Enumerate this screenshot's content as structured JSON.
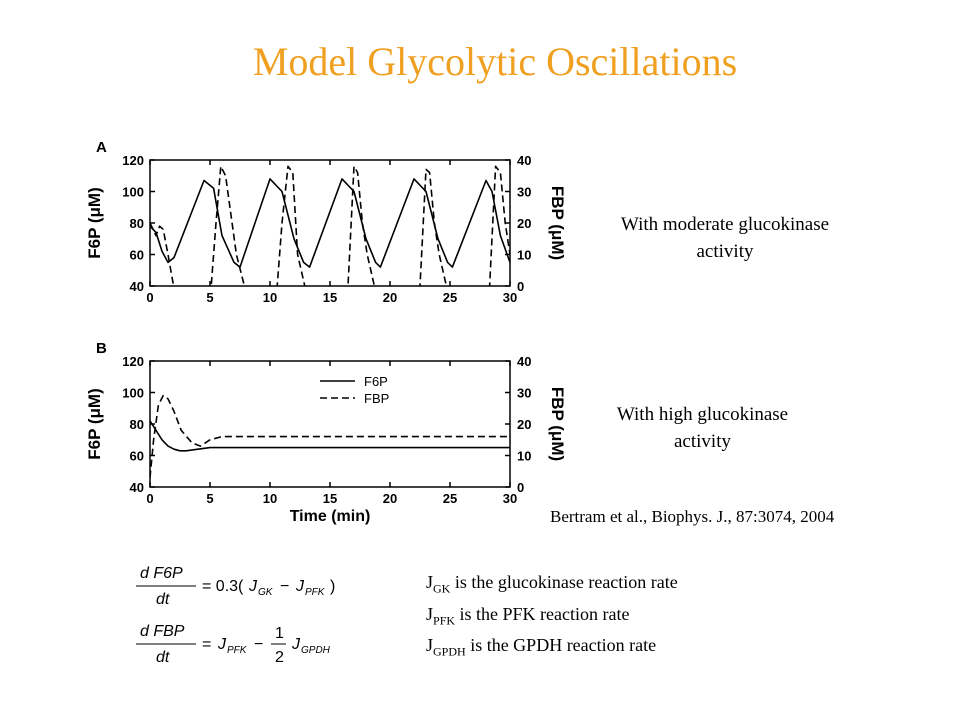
{
  "slide": {
    "title": "Model Glycolytic Oscillations",
    "caption_moderate_line1": "With moderate glucokinase",
    "caption_moderate_line2": "activity",
    "caption_high_line1": "With high glucokinase",
    "caption_high_line2": "activity",
    "citation": "Bertram et al., Biophys. J., 87:3074, 2004",
    "definitions": [
      {
        "sym": "J",
        "sub": "GK",
        "text": " is the glucokinase reaction rate"
      },
      {
        "sym": "J",
        "sub": "PFK",
        "text": " is the PFK reaction rate"
      },
      {
        "sym": "J",
        "sub": "GPDH",
        "text": " is the GPDH reaction rate"
      }
    ],
    "eq1": {
      "num": "d F6P",
      "den": "dt",
      "rhs": "= 0.3(",
      "j1": "J",
      "j1sub": "GK",
      "minus": "−",
      "j2": "J",
      "j2sub": "PFK",
      "close": ")"
    },
    "eq2": {
      "num": "d FBP",
      "den": "dt",
      "eq": "=",
      "j1": "J",
      "j1sub": "PFK",
      "minus": "−",
      "fnum": "1",
      "fden": "2",
      "j2": "J",
      "j2sub": "GPDH"
    }
  },
  "chart_data": [
    {
      "type": "line",
      "panel": "A",
      "xlim": [
        0,
        30
      ],
      "xticks": [
        0,
        5,
        10,
        15,
        20,
        25,
        30
      ],
      "ylabel": "F6P (μM)",
      "ylim": [
        40,
        120
      ],
      "yticks": [
        40,
        60,
        80,
        100,
        120
      ],
      "y2label": "FBP (μM)",
      "y2lim": [
        0,
        40
      ],
      "y2ticks": [
        0,
        10,
        20,
        30,
        40
      ],
      "xlabel": "",
      "series": [
        {
          "style": "solid",
          "axis": "left",
          "x": [
            0,
            0.5,
            1.0,
            1.5,
            2.0,
            4.5,
            5.3,
            6.0,
            7.0,
            7.5,
            10.0,
            11.0,
            12.0,
            12.8,
            13.3,
            16.0,
            17.0,
            18.0,
            18.8,
            19.2,
            22.0,
            23.0,
            24.0,
            24.8,
            25.2,
            28.0,
            28.5,
            29.2,
            30.0
          ],
          "y": [
            78,
            74,
            62,
            55,
            58,
            107,
            102,
            72,
            55,
            52,
            108,
            100,
            70,
            55,
            52,
            108,
            100,
            70,
            55,
            52,
            108,
            100,
            70,
            55,
            52,
            107,
            100,
            72,
            55
          ]
        },
        {
          "style": "dashed",
          "axis": "right",
          "x": [
            0,
            0.5,
            0.8,
            1.1,
            1.5,
            2.2,
            5.0,
            5.5,
            5.9,
            6.3,
            7.2,
            8.2,
            10.5,
            11.0,
            11.5,
            11.9,
            12.3,
            13.2,
            14.0,
            16.5,
            17.0,
            17.3,
            17.7,
            18.1,
            19.0,
            19.8,
            22.5,
            23.0,
            23.3,
            23.7,
            24.1,
            25.0,
            25.8,
            28.3,
            28.8,
            29.2,
            29.6,
            30.0
          ],
          "y": [
            20,
            16,
            19,
            18,
            10,
            -5,
            -5,
            20,
            38,
            35,
            10,
            -5,
            -5,
            20,
            38,
            36,
            10,
            -5,
            -5,
            0,
            38,
            36,
            20,
            10,
            -5,
            -5,
            0,
            37,
            36,
            20,
            10,
            -5,
            -5,
            0,
            38,
            36,
            20,
            10
          ]
        }
      ]
    },
    {
      "type": "line",
      "panel": "B",
      "xlim": [
        0,
        30
      ],
      "xticks": [
        0,
        5,
        10,
        15,
        20,
        25,
        30
      ],
      "xlabel": "Time (min)",
      "ylabel": "F6P (μM)",
      "ylim": [
        40,
        120
      ],
      "yticks": [
        40,
        60,
        80,
        100,
        120
      ],
      "y2label": "FBP (μM)",
      "y2lim": [
        0,
        40
      ],
      "y2ticks": [
        0,
        10,
        20,
        30,
        40
      ],
      "legend": "top-center",
      "series": [
        {
          "name": "F6P",
          "style": "solid",
          "axis": "left",
          "x": [
            0,
            0.5,
            1.0,
            1.5,
            2.0,
            2.5,
            3.0,
            4.0,
            5.0,
            6.0,
            8.0,
            30.0
          ],
          "y": [
            82,
            76,
            70,
            66,
            64,
            63,
            63,
            64,
            65,
            65,
            65,
            65
          ]
        },
        {
          "name": "FBP",
          "style": "dashed",
          "axis": "right",
          "x": [
            0,
            0.3,
            0.7,
            1.1,
            1.5,
            2.0,
            2.6,
            3.5,
            4.2,
            5.0,
            6.0,
            8.0,
            30.0
          ],
          "y": [
            3,
            15,
            26,
            29,
            28,
            24,
            18,
            14,
            13,
            15,
            16,
            16,
            16
          ]
        }
      ]
    }
  ]
}
